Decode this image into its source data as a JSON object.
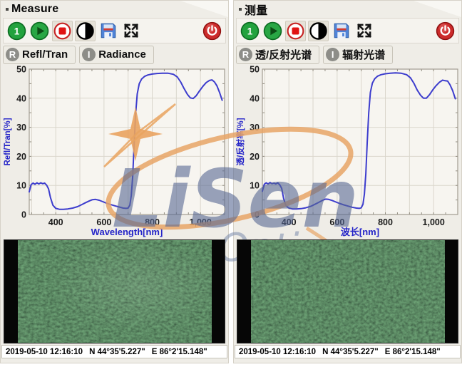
{
  "watermark": {
    "brand": "LiSen",
    "subtitle": "Optics",
    "text_color": "rgba(86,104,146,0.60)",
    "subtitle_color": "rgba(116,134,168,0.52)",
    "accent_color": "#e8a55f"
  },
  "panels": [
    {
      "title": "Measure",
      "toolbar": {
        "icons": [
          "preset-1-icon",
          "play-icon",
          "record-icon",
          "contrast-icon",
          "save-icon",
          "fullscreen-icon",
          "power-icon"
        ]
      },
      "tabs": [
        {
          "badge": "R",
          "label": "Refl/Tran"
        },
        {
          "badge": "I",
          "label": "Radiance"
        }
      ],
      "chart_data": {
        "type": "line",
        "title": "",
        "xlabel": "Wavelength[nm]",
        "ylabel": "Refl/Tran[%]",
        "xlim": [
          290,
          1100
        ],
        "ylim": [
          0,
          50
        ],
        "xticks": [
          400,
          600,
          800,
          1000
        ],
        "xtick_labels": [
          "400",
          "600",
          "800",
          "1,000"
        ],
        "yticks": [
          0,
          10,
          20,
          30,
          40,
          50
        ],
        "grid": true,
        "legend": false,
        "line_color": "#3c3ccd",
        "axis_label_color": "#2424c8",
        "series": [
          {
            "name": "Refl/Tran",
            "x": [
              290,
              298,
              306,
              314,
              322,
              330,
              338,
              346,
              354,
              362,
              370,
              378,
              388,
              400,
              415,
              432,
              450,
              470,
              490,
              508,
              524,
              540,
              552,
              565,
              580,
              595,
              610,
              628,
              645,
              662,
              680,
              692,
              700,
              707,
              713,
              719,
              725,
              731,
              738,
              746,
              756,
              768,
              782,
              800,
              820,
              842,
              865,
              888,
              904,
              918,
              932,
              946,
              958,
              970,
              983,
              996,
              1010,
              1024,
              1037,
              1048,
              1058,
              1068,
              1079,
              1090
            ],
            "y": [
              7.8,
              10.3,
              10.8,
              10.4,
              10.9,
              10.5,
              10.9,
              10.6,
              10.8,
              10.1,
              8.8,
              5.8,
              3.2,
              2.1,
              1.8,
              1.8,
              1.9,
              2.2,
              2.7,
              3.4,
              4.1,
              4.7,
              5.1,
              5.2,
              4.9,
              4.4,
              3.9,
              3.4,
              3.0,
              2.6,
              2.2,
              2.1,
              2.2,
              3.2,
              6.5,
              13.0,
              24.0,
              34.5,
              41.5,
              45.0,
              46.6,
              47.5,
              48.0,
              48.3,
              48.5,
              48.6,
              48.6,
              48.2,
              47.3,
              45.6,
              43.3,
              41.3,
              40.1,
              39.9,
              40.9,
              42.5,
              44.1,
              45.4,
              46.1,
              46.3,
              45.6,
              44.3,
              42.0,
              39.3
            ]
          }
        ]
      },
      "status": {
        "datetime": "2019-05-10 12:16:10",
        "latitude": "N 44°35'5.227\"",
        "longitude": "E 86°2'15.148\""
      }
    },
    {
      "title": "测量",
      "toolbar": {
        "icons": [
          "preset-1-icon",
          "play-icon",
          "record-icon",
          "contrast-icon",
          "save-icon",
          "fullscreen-icon",
          "power-icon"
        ]
      },
      "tabs": [
        {
          "badge": "R",
          "label": "透/反射光谱"
        },
        {
          "badge": "I",
          "label": "辐射光谱"
        }
      ],
      "chart_data": {
        "type": "line",
        "title": "",
        "xlabel": "波长[nm]",
        "ylabel": "透/反射率[%]",
        "xlim": [
          290,
          1100
        ],
        "ylim": [
          0,
          50
        ],
        "xticks": [
          400,
          600,
          800,
          1000
        ],
        "xtick_labels": [
          "400",
          "600",
          "800",
          "1,000"
        ],
        "yticks": [
          0,
          10,
          20,
          30,
          40,
          50
        ],
        "grid": true,
        "legend": false,
        "line_color": "#3c3ccd",
        "axis_label_color": "#2424c8",
        "series": [
          {
            "name": "透/反射率",
            "x": [
              290,
              298,
              306,
              314,
              322,
              330,
              338,
              346,
              354,
              362,
              370,
              378,
              388,
              400,
              415,
              432,
              450,
              470,
              490,
              508,
              524,
              540,
              552,
              565,
              580,
              595,
              610,
              628,
              645,
              662,
              680,
              692,
              700,
              707,
              713,
              719,
              725,
              731,
              738,
              746,
              756,
              768,
              782,
              800,
              820,
              842,
              865,
              888,
              904,
              918,
              932,
              946,
              958,
              970,
              983,
              996,
              1010,
              1024,
              1037,
              1048,
              1058,
              1068,
              1079,
              1090
            ],
            "y": [
              8.0,
              10.4,
              10.9,
              10.5,
              11.0,
              10.6,
              10.8,
              10.5,
              10.9,
              10.2,
              9.0,
              5.5,
              3.0,
              2.2,
              1.9,
              1.9,
              2.0,
              2.3,
              2.8,
              3.5,
              4.2,
              4.9,
              5.3,
              5.2,
              4.8,
              4.3,
              3.8,
              3.3,
              2.9,
              2.5,
              2.2,
              2.1,
              2.3,
              3.5,
              7.0,
              14.0,
              25.0,
              35.0,
              42.0,
              45.2,
              46.7,
              47.6,
              48.1,
              48.4,
              48.6,
              48.7,
              48.6,
              48.1,
              47.0,
              45.2,
              42.8,
              41.0,
              40.0,
              40.0,
              41.2,
              42.8,
              44.3,
              45.5,
              46.2,
              46.0,
              45.9,
              44.6,
              42.6,
              39.8
            ]
          }
        ]
      },
      "status": {
        "datetime": "2019-05-10 12:16:10",
        "latitude": "N 44°35'5.227\"",
        "longitude": "E 86°2'15.148\""
      }
    }
  ]
}
